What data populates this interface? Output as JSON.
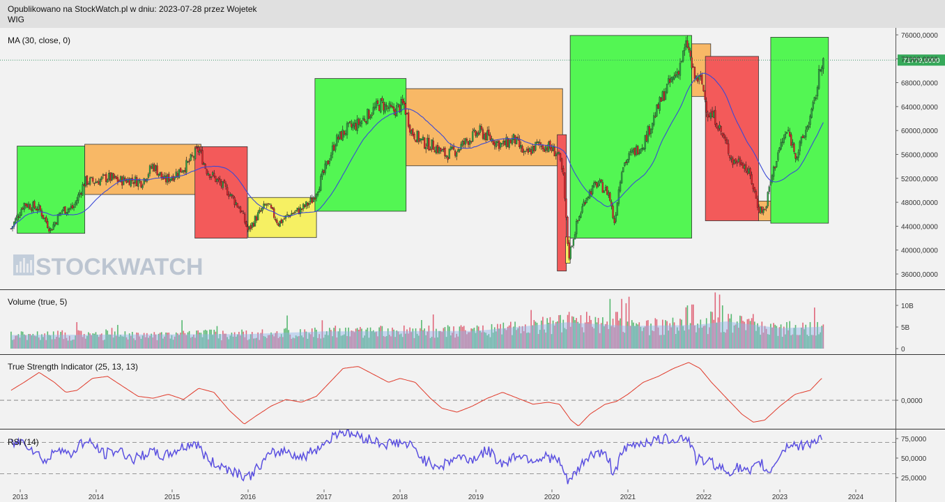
{
  "header": {
    "published": "Opublikowano na StockWatch.pl w dniu: 2023-07-28 przez Wojetek",
    "symbol": "WIG"
  },
  "watermark": "STOCKWATCH",
  "colors": {
    "up": "#2ea043",
    "down": "#d9232a",
    "ma": "#3a49d6",
    "tsi": "#e03a2a",
    "rsi": "#5a4fe0",
    "box_green": "#53f653",
    "box_orange": "#f8b866",
    "box_red": "#f35a5a",
    "box_yellow": "#f6f063",
    "price_tag": "#36a95a"
  },
  "chart_data": [
    {
      "type": "candlestick",
      "title": "MA (30, close, 0)",
      "symbol": "WIG",
      "ylim": [
        33000,
        78000
      ],
      "y_ticks": [
        "76000,0000",
        "72000,0000",
        "68000,0000",
        "64000,0000",
        "60000,0000",
        "56000,0000",
        "52000,0000",
        "48000,0000",
        "44000,0000",
        "40000,0000",
        "36000,0000"
      ],
      "last_price": 71779.6,
      "last_price_label": "71779,6000",
      "x_range": [
        2012.88,
        2024.55
      ],
      "close": [
        [
          2012.88,
          43600
        ],
        [
          2013.05,
          47800
        ],
        [
          2013.25,
          46900
        ],
        [
          2013.4,
          43400
        ],
        [
          2013.55,
          46700
        ],
        [
          2013.7,
          47100
        ],
        [
          2013.85,
          51500
        ],
        [
          2014.0,
          51500
        ],
        [
          2014.15,
          52200
        ],
        [
          2014.3,
          51600
        ],
        [
          2014.45,
          51800
        ],
        [
          2014.6,
          51400
        ],
        [
          2014.75,
          54200
        ],
        [
          2014.9,
          51600
        ],
        [
          2015.05,
          52800
        ],
        [
          2015.2,
          54300
        ],
        [
          2015.35,
          56900
        ],
        [
          2015.45,
          53500
        ],
        [
          2015.6,
          51500
        ],
        [
          2015.75,
          49600
        ],
        [
          2015.9,
          46800
        ],
        [
          2016.0,
          43200
        ],
        [
          2016.12,
          45700
        ],
        [
          2016.25,
          47700
        ],
        [
          2016.4,
          44500
        ],
        [
          2016.55,
          46000
        ],
        [
          2016.7,
          46800
        ],
        [
          2016.85,
          48400
        ],
        [
          2017.0,
          53000
        ],
        [
          2017.15,
          58200
        ],
        [
          2017.3,
          60200
        ],
        [
          2017.45,
          61100
        ],
        [
          2017.6,
          62900
        ],
        [
          2017.75,
          64500
        ],
        [
          2017.9,
          63200
        ],
        [
          2018.05,
          64400
        ],
        [
          2018.15,
          59800
        ],
        [
          2018.3,
          58000
        ],
        [
          2018.45,
          57400
        ],
        [
          2018.6,
          55900
        ],
        [
          2018.75,
          56800
        ],
        [
          2018.9,
          58500
        ],
        [
          2019.05,
          59800
        ],
        [
          2019.2,
          58600
        ],
        [
          2019.35,
          57500
        ],
        [
          2019.5,
          58600
        ],
        [
          2019.65,
          55800
        ],
        [
          2019.8,
          57600
        ],
        [
          2019.95,
          57300
        ],
        [
          2020.08,
          56100
        ],
        [
          2020.15,
          52000
        ],
        [
          2020.22,
          38800
        ],
        [
          2020.32,
          44100
        ],
        [
          2020.45,
          49000
        ],
        [
          2020.6,
          51200
        ],
        [
          2020.75,
          49500
        ],
        [
          2020.82,
          44500
        ],
        [
          2020.92,
          54000
        ],
        [
          2021.05,
          56100
        ],
        [
          2021.2,
          57800
        ],
        [
          2021.35,
          62400
        ],
        [
          2021.5,
          66900
        ],
        [
          2021.65,
          69800
        ],
        [
          2021.78,
          74600
        ],
        [
          2021.87,
          68900
        ],
        [
          2021.97,
          68200
        ],
        [
          2022.05,
          63000
        ],
        [
          2022.15,
          62000
        ],
        [
          2022.25,
          59000
        ],
        [
          2022.38,
          54800
        ],
        [
          2022.5,
          55000
        ],
        [
          2022.62,
          52000
        ],
        [
          2022.72,
          47000
        ],
        [
          2022.8,
          46500
        ],
        [
          2022.88,
          51500
        ],
        [
          2022.98,
          56500
        ],
        [
          2023.1,
          60000
        ],
        [
          2023.22,
          55800
        ],
        [
          2023.35,
          60300
        ],
        [
          2023.45,
          64200
        ],
        [
          2023.55,
          71780
        ]
      ],
      "ma_series_name": "MA (30, close, 0)",
      "shaded_boxes": [
        {
          "x0": 2012.96,
          "x1": 2013.85,
          "y0": 42800,
          "y1": 57400,
          "color": "green"
        },
        {
          "x0": 2013.85,
          "x1": 2015.38,
          "y0": 49300,
          "y1": 57700,
          "color": "orange"
        },
        {
          "x0": 2015.3,
          "x1": 2015.99,
          "y0": 42000,
          "y1": 57300,
          "color": "red"
        },
        {
          "x0": 2016.0,
          "x1": 2016.9,
          "y0": 42100,
          "y1": 48800,
          "color": "yellow"
        },
        {
          "x0": 2016.88,
          "x1": 2018.08,
          "y0": 46500,
          "y1": 68700,
          "color": "green"
        },
        {
          "x0": 2018.08,
          "x1": 2020.14,
          "y0": 54100,
          "y1": 67000,
          "color": "orange"
        },
        {
          "x0": 2020.07,
          "x1": 2020.19,
          "y0": 36500,
          "y1": 59300,
          "color": "red"
        },
        {
          "x0": 2020.18,
          "x1": 2020.24,
          "y0": 37800,
          "y1": 42200,
          "color": "yellow"
        },
        {
          "x0": 2020.24,
          "x1": 2021.84,
          "y0": 42000,
          "y1": 75900,
          "color": "green"
        },
        {
          "x0": 2021.84,
          "x1": 2022.09,
          "y0": 65700,
          "y1": 74500,
          "color": "orange"
        },
        {
          "x0": 2022.02,
          "x1": 2022.72,
          "y0": 44900,
          "y1": 72400,
          "color": "red"
        },
        {
          "x0": 2022.72,
          "x1": 2022.92,
          "y0": 44900,
          "y1": 48200,
          "color": "orange"
        },
        {
          "x0": 2022.88,
          "x1": 2023.64,
          "y0": 44500,
          "y1": 75600,
          "color": "green"
        }
      ]
    },
    {
      "type": "bar",
      "title": "Volume (true, 5)",
      "y_ticks": [
        "10B",
        "5B",
        "0"
      ],
      "ylim": [
        0,
        13
      ],
      "unit": "B",
      "baseline": [
        [
          2012.88,
          3.0
        ],
        [
          2016.0,
          3.2
        ],
        [
          2017.0,
          3.8
        ],
        [
          2019.0,
          3.9
        ],
        [
          2020.2,
          5.8
        ],
        [
          2021.0,
          5.0
        ],
        [
          2021.9,
          5.2
        ],
        [
          2022.3,
          6.0
        ],
        [
          2023.0,
          4.5
        ],
        [
          2023.55,
          4.8
        ]
      ],
      "peaks": [
        [
          2020.22,
          8.5
        ],
        [
          2020.85,
          8.5
        ],
        [
          2020.92,
          11.5
        ],
        [
          2020.97,
          10.5
        ],
        [
          2021.02,
          12.0
        ],
        [
          2021.78,
          10.0
        ],
        [
          2021.85,
          10.2
        ],
        [
          2022.15,
          13.0
        ],
        [
          2022.2,
          12.5
        ],
        [
          2022.25,
          10.0
        ],
        [
          2022.65,
          8.0
        ],
        [
          2023.45,
          9.5
        ]
      ]
    },
    {
      "type": "line",
      "title": "True Strength Indicator (25, 13, 13)",
      "y_ticks": [
        "0,0000"
      ],
      "ylim": [
        -7,
        11
      ],
      "series": [
        {
          "name": "True Strength Indicator (25, 13, 13)",
          "x": [
            2012.88,
            2013.05,
            2013.25,
            2013.45,
            2013.6,
            2013.75,
            2013.95,
            2014.15,
            2014.35,
            2014.55,
            2014.75,
            2014.95,
            2015.15,
            2015.35,
            2015.55,
            2015.75,
            2015.95,
            2016.1,
            2016.3,
            2016.5,
            2016.7,
            2016.9,
            2017.1,
            2017.25,
            2017.45,
            2017.65,
            2017.85,
            2018.0,
            2018.2,
            2018.4,
            2018.55,
            2018.75,
            2018.95,
            2019.15,
            2019.35,
            2019.55,
            2019.75,
            2019.95,
            2020.1,
            2020.25,
            2020.35,
            2020.5,
            2020.7,
            2020.85,
            2021.0,
            2021.2,
            2021.4,
            2021.6,
            2021.8,
            2021.95,
            2022.1,
            2022.3,
            2022.5,
            2022.65,
            2022.8,
            2023.0,
            2023.2,
            2023.4,
            2023.55
          ],
          "values": [
            2.5,
            4.5,
            7.0,
            4.5,
            2.0,
            2.5,
            5.5,
            6.0,
            3.5,
            1.0,
            0.5,
            1.5,
            0.2,
            3.0,
            2.0,
            -2.5,
            -6.0,
            -4.0,
            -1.5,
            0.2,
            -0.5,
            1.0,
            5.0,
            8.0,
            8.5,
            6.5,
            4.5,
            5.5,
            4.5,
            0.5,
            -2.0,
            -3.0,
            -1.5,
            0.5,
            2.0,
            0.5,
            -1.0,
            -0.5,
            -1.0,
            -5.0,
            -6.5,
            -3.5,
            -1.0,
            -0.3,
            1.5,
            4.5,
            6.0,
            8.0,
            9.5,
            8.0,
            4.5,
            0.5,
            -3.5,
            -5.5,
            -5.0,
            -1.5,
            1.5,
            2.5,
            5.5
          ]
        }
      ]
    },
    {
      "type": "line",
      "title": "RSI (14)",
      "y_ticks": [
        "75,0000",
        "50,0000",
        "25,0000"
      ],
      "ylim": [
        5,
        90
      ],
      "series": [
        {
          "name": "RSI (14)",
          "x": [
            2012.88,
            2013.05,
            2013.2,
            2013.35,
            2013.5,
            2013.65,
            2013.8,
            2013.95,
            2014.1,
            2014.3,
            2014.5,
            2014.7,
            2014.9,
            2015.1,
            2015.3,
            2015.5,
            2015.7,
            2015.9,
            2016.0,
            2016.15,
            2016.3,
            2016.5,
            2016.7,
            2016.9,
            2017.05,
            2017.2,
            2017.4,
            2017.6,
            2017.8,
            2018.0,
            2018.15,
            2018.35,
            2018.55,
            2018.75,
            2018.95,
            2019.15,
            2019.35,
            2019.55,
            2019.75,
            2019.95,
            2020.1,
            2020.2,
            2020.3,
            2020.45,
            2020.6,
            2020.75,
            2020.8,
            2020.95,
            2021.1,
            2021.3,
            2021.5,
            2021.7,
            2021.8,
            2021.9,
            2022.1,
            2022.3,
            2022.45,
            2022.6,
            2022.75,
            2022.85,
            2023.0,
            2023.15,
            2023.25,
            2023.4,
            2023.55
          ],
          "values": [
            68,
            72,
            58,
            45,
            66,
            52,
            70,
            68,
            55,
            60,
            48,
            58,
            52,
            62,
            70,
            45,
            38,
            30,
            25,
            40,
            55,
            60,
            50,
            62,
            72,
            85,
            80,
            74,
            68,
            70,
            65,
            45,
            40,
            52,
            48,
            60,
            42,
            55,
            48,
            52,
            45,
            20,
            28,
            50,
            58,
            50,
            30,
            60,
            68,
            72,
            74,
            76,
            75,
            48,
            45,
            32,
            38,
            30,
            45,
            30,
            55,
            70,
            64,
            70,
            76
          ]
        }
      ]
    }
  ],
  "x_axis": {
    "ticks": [
      "2013",
      "2014",
      "2015",
      "2016",
      "2017",
      "2018",
      "2019",
      "2020",
      "2021",
      "2022",
      "2023",
      "2024"
    ]
  }
}
